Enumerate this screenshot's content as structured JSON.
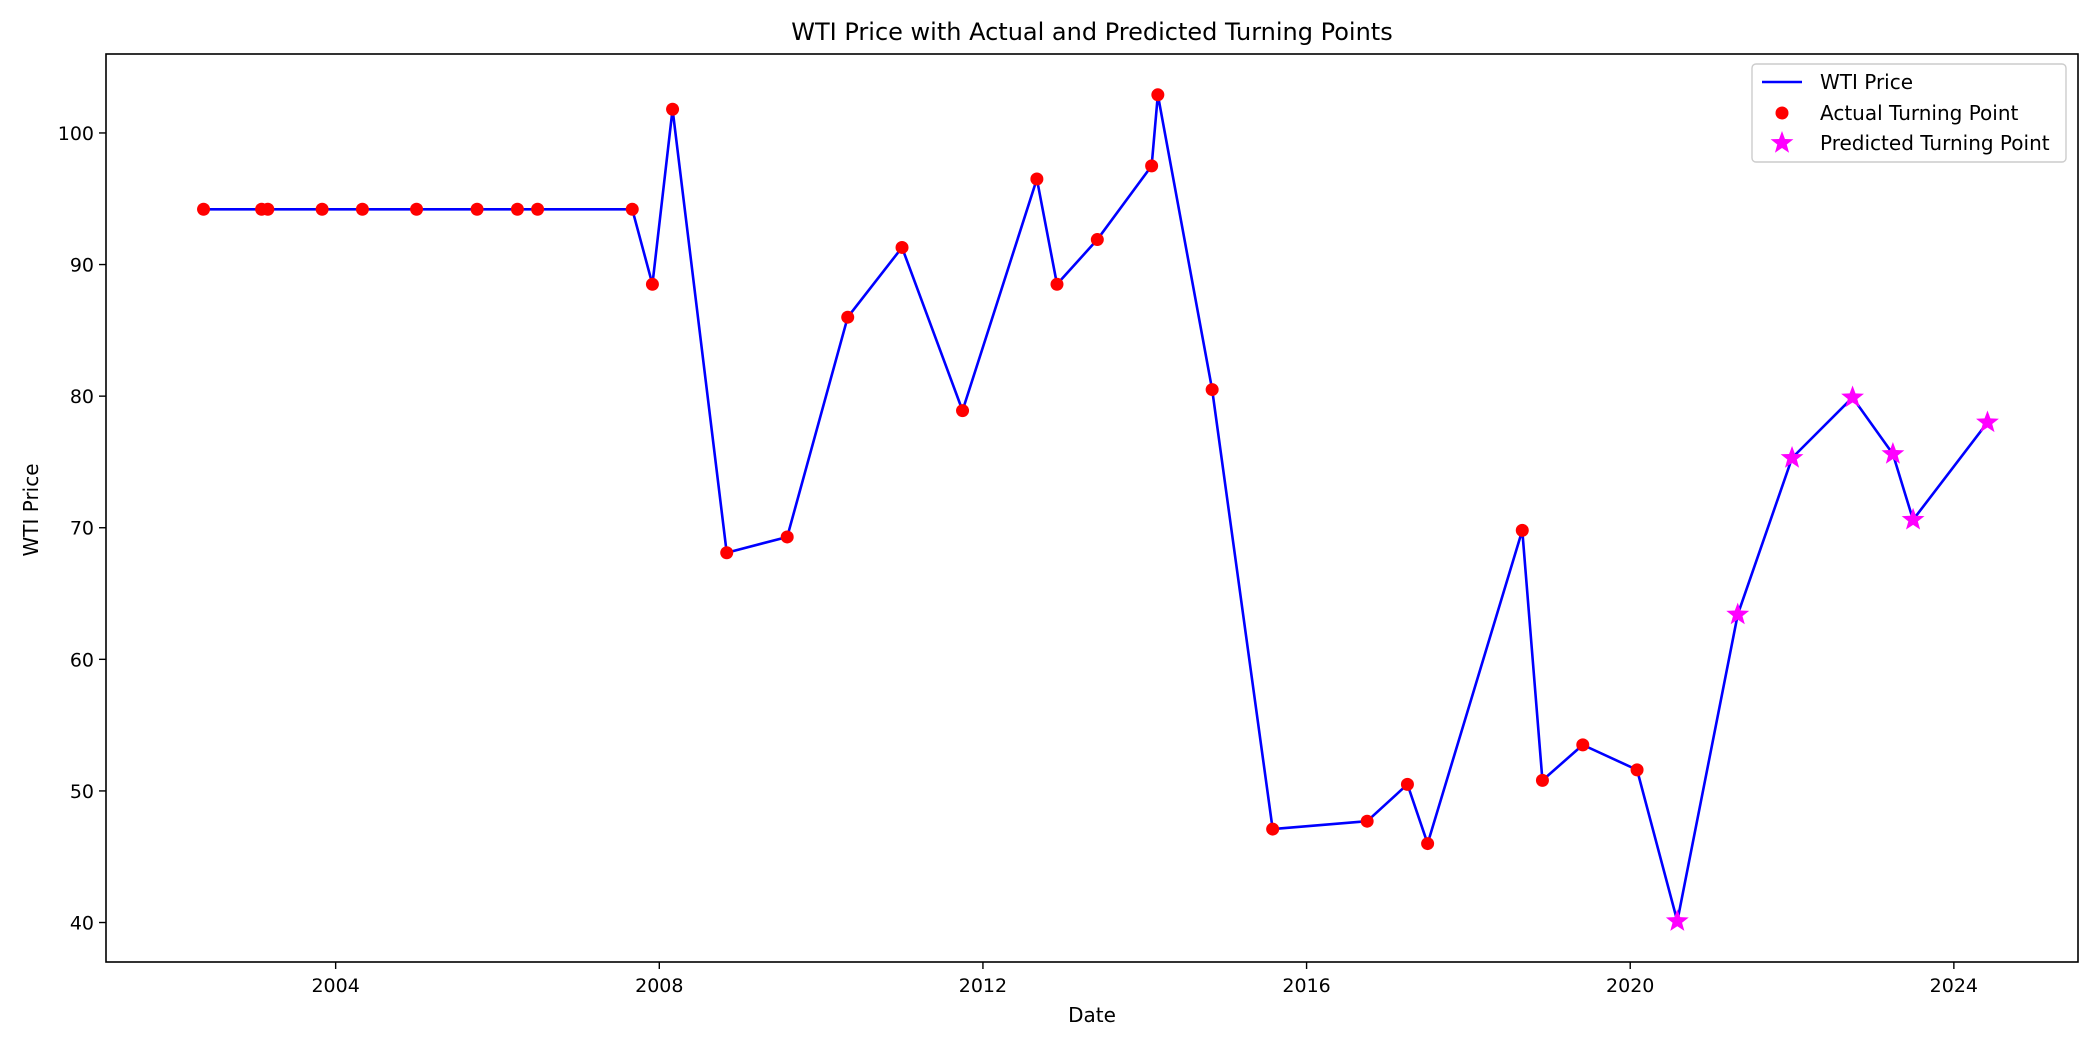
{
  "chart_data": {
    "type": "line",
    "title": "WTI Price with Actual and Predicted Turning Points",
    "xlabel": "Date",
    "ylabel": "WTI Price",
    "xlim": [
      "2001-03-01",
      "2025-07-15"
    ],
    "ylim": [
      37,
      106
    ],
    "x_ticks": [
      "2004",
      "2008",
      "2012",
      "2016",
      "2020",
      "2024"
    ],
    "y_ticks": [
      40,
      50,
      60,
      70,
      80,
      90,
      100
    ],
    "grid": false,
    "legend_position": "top-right",
    "colors": {
      "line": "#0000ff",
      "actual": "#ff0000",
      "predicted": "#ff00ff"
    },
    "series": [
      {
        "name": "WTI Price",
        "kind": "line",
        "points": [
          [
            "2002-05-15",
            94.2
          ],
          [
            "2003-02-01",
            94.2
          ],
          [
            "2003-03-01",
            94.2
          ],
          [
            "2003-11-01",
            94.2
          ],
          [
            "2004-05-01",
            94.2
          ],
          [
            "2005-01-01",
            94.2
          ],
          [
            "2005-10-01",
            94.2
          ],
          [
            "2006-04-01",
            94.2
          ],
          [
            "2006-07-01",
            94.2
          ],
          [
            "2007-09-01",
            94.2
          ],
          [
            "2007-12-01",
            88.5
          ],
          [
            "2008-03-01",
            101.8
          ],
          [
            "2008-11-01",
            68.1
          ],
          [
            "2009-08-01",
            69.3
          ],
          [
            "2010-05-01",
            86.0
          ],
          [
            "2011-01-01",
            91.3
          ],
          [
            "2011-10-01",
            78.9
          ],
          [
            "2012-09-01",
            96.5
          ],
          [
            "2012-12-01",
            88.5
          ],
          [
            "2013-06-01",
            91.9
          ],
          [
            "2014-02-01",
            97.5
          ],
          [
            "2014-03-01",
            102.9
          ],
          [
            "2014-11-01",
            80.5
          ],
          [
            "2015-08-01",
            47.1
          ],
          [
            "2016-10-01",
            47.7
          ],
          [
            "2017-04-01",
            50.5
          ],
          [
            "2017-07-01",
            46.0
          ],
          [
            "2018-09-01",
            69.8
          ],
          [
            "2018-12-01",
            50.8
          ],
          [
            "2019-06-01",
            53.5
          ],
          [
            "2020-02-01",
            51.6
          ],
          [
            "2020-08-01",
            40.1
          ],
          [
            "2021-05-01",
            63.4
          ],
          [
            "2022-01-01",
            75.3
          ],
          [
            "2022-10-01",
            79.9
          ],
          [
            "2023-04-01",
            75.6
          ],
          [
            "2023-07-01",
            70.6
          ],
          [
            "2024-06-01",
            78.0
          ]
        ]
      },
      {
        "name": "Actual Turning Point",
        "kind": "scatter",
        "marker": "circle",
        "points": [
          [
            "2002-05-15",
            94.2
          ],
          [
            "2003-02-01",
            94.2
          ],
          [
            "2003-03-01",
            94.2
          ],
          [
            "2003-11-01",
            94.2
          ],
          [
            "2004-05-01",
            94.2
          ],
          [
            "2005-01-01",
            94.2
          ],
          [
            "2005-10-01",
            94.2
          ],
          [
            "2006-04-01",
            94.2
          ],
          [
            "2006-07-01",
            94.2
          ],
          [
            "2007-09-01",
            94.2
          ],
          [
            "2007-12-01",
            88.5
          ],
          [
            "2008-03-01",
            101.8
          ],
          [
            "2008-11-01",
            68.1
          ],
          [
            "2009-08-01",
            69.3
          ],
          [
            "2010-05-01",
            86.0
          ],
          [
            "2011-01-01",
            91.3
          ],
          [
            "2011-10-01",
            78.9
          ],
          [
            "2012-09-01",
            96.5
          ],
          [
            "2012-12-01",
            88.5
          ],
          [
            "2013-06-01",
            91.9
          ],
          [
            "2014-02-01",
            97.5
          ],
          [
            "2014-03-01",
            102.9
          ],
          [
            "2014-11-01",
            80.5
          ],
          [
            "2015-08-01",
            47.1
          ],
          [
            "2016-10-01",
            47.7
          ],
          [
            "2017-04-01",
            50.5
          ],
          [
            "2017-07-01",
            46.0
          ],
          [
            "2018-09-01",
            69.8
          ],
          [
            "2018-12-01",
            50.8
          ],
          [
            "2019-06-01",
            53.5
          ],
          [
            "2020-02-01",
            51.6
          ]
        ]
      },
      {
        "name": "Predicted Turning Point",
        "kind": "scatter",
        "marker": "star",
        "points": [
          [
            "2020-08-01",
            40.1
          ],
          [
            "2021-05-01",
            63.4
          ],
          [
            "2022-01-01",
            75.3
          ],
          [
            "2022-10-01",
            79.9
          ],
          [
            "2023-04-01",
            75.6
          ],
          [
            "2023-07-01",
            70.6
          ],
          [
            "2024-06-01",
            78.0
          ]
        ]
      }
    ]
  }
}
